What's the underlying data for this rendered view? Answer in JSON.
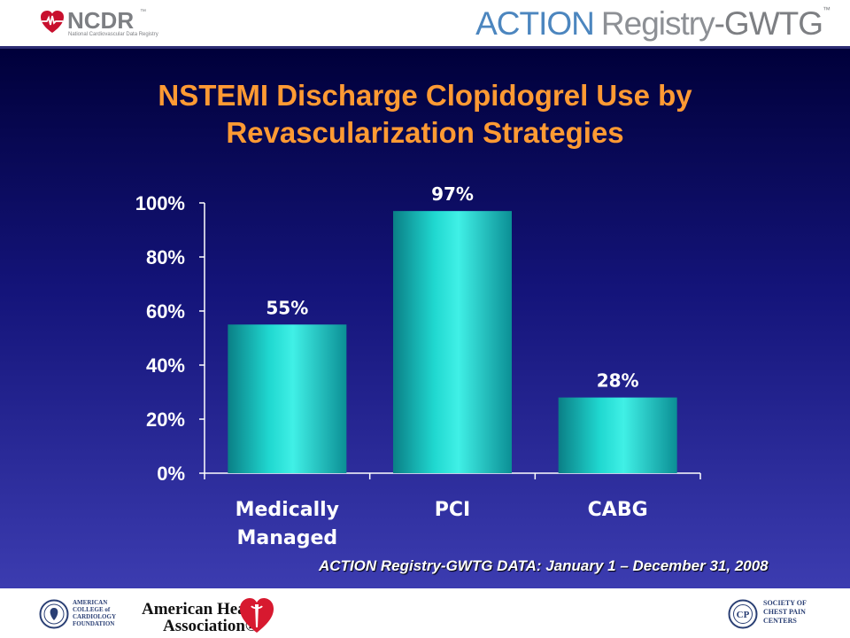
{
  "header": {
    "ncdr_name": "NCDR",
    "ncdr_tm": "™",
    "ncdr_subtitle": "National Cardiovascular Data Registry",
    "registry_action": "ACTION",
    "registry_registry": "Registry",
    "registry_gwtg": "-GWTG",
    "registry_tm": "™"
  },
  "colors": {
    "title": "#ff9a33",
    "bar": "#20d8d0",
    "background_top": "#00003a",
    "background_bottom": "#3c3cb0"
  },
  "chart_data": {
    "type": "bar",
    "title": "NSTEMI Discharge Clopidogrel Use by Revascularization Strategies",
    "categories": [
      "Medically Managed",
      "PCI",
      "CABG"
    ],
    "category_lines": [
      [
        "Medically",
        "Managed"
      ],
      [
        "PCI"
      ],
      [
        "CABG"
      ]
    ],
    "values": [
      55,
      97,
      28
    ],
    "data_labels": [
      "55%",
      "97%",
      "28%"
    ],
    "yticks": [
      "0%",
      "20%",
      "40%",
      "60%",
      "80%",
      "100%"
    ],
    "ylim": [
      0,
      100
    ],
    "grid": false,
    "legend": "none"
  },
  "footnote": "ACTION Registry-GWTG DATA: January 1 – December 31, 2008",
  "footer": {
    "acc_lines": [
      "AMERICAN",
      "COLLEGE of",
      "CARDIOLOGY",
      "FOUNDATION"
    ],
    "aha_line1": "American Heart",
    "aha_line2": "Association®",
    "scpc_lines": [
      "SOCIETY OF",
      "CHEST PAIN",
      "CENTERS"
    ]
  }
}
